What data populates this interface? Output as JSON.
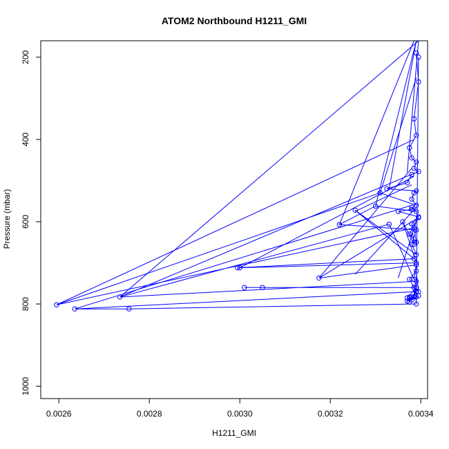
{
  "chart_data": {
    "type": "line",
    "title": "ATOM2 Northbound H1211_GMI",
    "xlabel": "H1211_GMI",
    "ylabel": "Pressure (mbar)",
    "xlim": [
      0.00256,
      0.003415
    ],
    "ylim": [
      1030,
      160
    ],
    "y_reversed": true,
    "x_ticks": [
      "0.0026",
      "0.0028",
      "0.0030",
      "0.0032",
      "0.0034"
    ],
    "x_tick_values": [
      0.0026,
      0.0028,
      0.003,
      0.0032,
      0.0034
    ],
    "y_ticks": [
      "200",
      "400",
      "600",
      "800",
      "1000"
    ],
    "y_tick_values": [
      200,
      400,
      600,
      800,
      1000
    ],
    "grid": false,
    "legend": "none",
    "colors": {
      "series": "#0000ff",
      "axis": "#000000"
    },
    "series": [
      {
        "x": [
          0.00339,
          0.003395,
          0.003385,
          0.00339,
          0.003375,
          0.00338,
          0.00339,
          0.003385,
          0.003395,
          0.00338,
          0.00337,
          0.003325,
          0.00339,
          0.003385,
          0.00338,
          0.00339,
          0.00331,
          0.002595,
          0.003385,
          0.00339,
          0.003375,
          0.003395,
          0.00335,
          0.00338,
          0.00338,
          0.00339,
          0.0033,
          0.00322,
          0.00339,
          0.00338,
          0.00339,
          0.003255,
          0.003385,
          0.002995,
          0.003,
          0.00339,
          0.00336,
          0.003385,
          0.00338,
          0.003395,
          0.003175,
          0.00339,
          0.003385,
          0.00333,
          0.002735,
          0.00339,
          0.003385,
          0.003395,
          0.00339,
          0.003375,
          0.003385,
          0.00301,
          0.00305,
          0.00339,
          0.00338,
          0.003395,
          0.00339,
          0.003385,
          0.00338,
          0.003375,
          0.00337,
          0.003385,
          0.00339,
          0.00337,
          0.003375,
          0.00339,
          0.00339,
          0.002635,
          0.002755,
          0.00339,
          0.003395
        ],
        "y": [
          190,
          260,
          350,
          390,
          420,
          445,
          455,
          470,
          478,
          485,
          505,
          520,
          525,
          530,
          545,
          560,
          530,
          802,
          615,
          650,
          630,
          588,
          575,
          570,
          565,
          575,
          562,
          607,
          620,
          655,
          680,
          572,
          690,
          712,
          712,
          700,
          600,
          655,
          605,
          590,
          737,
          705,
          740,
          606,
          783,
          745,
          760,
          770,
          720,
          740,
          760,
          760,
          760,
          760,
          790,
          780,
          783,
          783,
          783,
          783,
          793,
          783,
          760,
          785,
          795,
          770,
          770,
          812,
          812,
          800,
          200
        ]
      }
    ],
    "extra_segments": [
      [
        [
          0.002595,
          802
        ],
        [
          0.003385,
          400
        ]
      ],
      [
        [
          0.002735,
          783
        ],
        [
          0.003395,
          160
        ]
      ],
      [
        [
          0.0033,
          562
        ],
        [
          0.00339,
          160
        ]
      ],
      [
        [
          0.00322,
          607
        ],
        [
          0.003385,
          160
        ]
      ],
      [
        [
          0.003175,
          737
        ],
        [
          0.00338,
          470
        ]
      ],
      [
        [
          0.003255,
          728
        ],
        [
          0.00339,
          565
        ]
      ],
      [
        [
          0.00335,
          737
        ],
        [
          0.00339,
          600
        ]
      ],
      [
        [
          0.002635,
          812
        ],
        [
          0.00338,
          560
        ]
      ],
      [
        [
          0.00333,
          520
        ],
        [
          0.00339,
          160
        ]
      ],
      [
        [
          0.00337,
          480
        ],
        [
          0.003395,
          160
        ]
      ],
      [
        [
          0.003,
          712
        ],
        [
          0.003385,
          490
        ]
      ],
      [
        [
          0.003255,
          575
        ],
        [
          0.00338,
          510
        ]
      ],
      [
        [
          0.002735,
          783
        ],
        [
          0.00339,
          480
        ]
      ],
      [
        [
          0.00331,
          530
        ],
        [
          0.00339,
          250
        ]
      ]
    ]
  }
}
